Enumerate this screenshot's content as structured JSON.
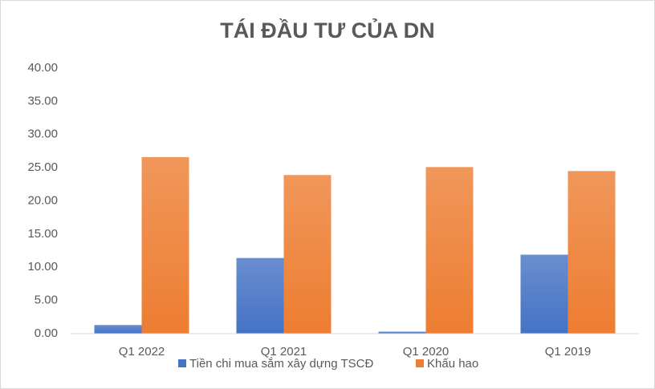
{
  "chart_data": {
    "type": "bar",
    "title": "TÁI ĐẦU TƯ CỦA DN",
    "categories": [
      "Q1 2022",
      "Q1 2021",
      "Q1 2020",
      "Q1 2019"
    ],
    "series": [
      {
        "name": "Tiền chi mua sắm xây dựng TSCĐ",
        "color": "#4472c4",
        "values": [
          1.3,
          11.4,
          0.3,
          11.9
        ]
      },
      {
        "name": "Khấu hao",
        "color": "#ed7d31",
        "values": [
          26.6,
          23.9,
          25.1,
          24.5
        ]
      }
    ],
    "ylim": [
      0,
      40
    ],
    "yticks": [
      {
        "value": 0,
        "label": "0.00"
      },
      {
        "value": 5,
        "label": "5.00"
      },
      {
        "value": 10,
        "label": "10.00"
      },
      {
        "value": 15,
        "label": "15.00"
      },
      {
        "value": 20,
        "label": "20.00"
      },
      {
        "value": 25,
        "label": "25.00"
      },
      {
        "value": 30,
        "label": "30.00"
      },
      {
        "value": 35,
        "label": "35.00"
      },
      {
        "value": 40,
        "label": "40.00"
      }
    ],
    "grid": false,
    "legend": "bottom"
  }
}
